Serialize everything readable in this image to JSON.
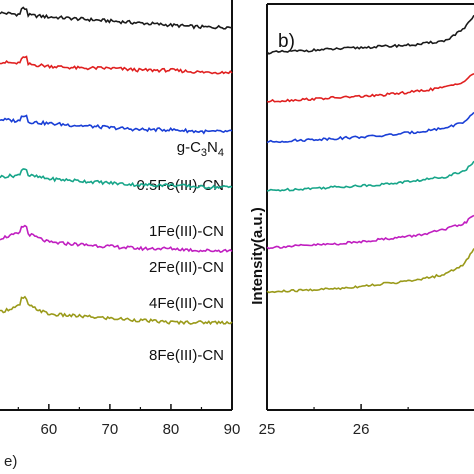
{
  "chart_data": [
    {
      "panel": "a",
      "type": "line",
      "x_ticks": [
        60,
        70,
        80,
        90
      ],
      "x_axis_fragment": "e)",
      "xlim": [
        52,
        90
      ],
      "series": [
        {
          "name": "g-C3N4",
          "color": "#1a1a1a",
          "label_parts": [
            "g-C",
            "3",
            "N",
            "4"
          ],
          "x": [
            52,
            56,
            60,
            65,
            70,
            75,
            80,
            85,
            90
          ],
          "y": [
            0.92,
            0.915,
            0.91,
            0.905,
            0.9,
            0.895,
            0.89,
            0.885,
            0.885
          ]
        },
        {
          "name": "0.5Fe(III)-CN",
          "color": "#e02020",
          "x": [
            52,
            56,
            60,
            65,
            70,
            75,
            80,
            85,
            90
          ],
          "y": [
            0.8,
            0.795,
            0.79,
            0.785,
            0.785,
            0.78,
            0.78,
            0.775,
            0.775
          ]
        },
        {
          "name": "1Fe(III)-CN",
          "color": "#1a3fd6",
          "x": [
            52,
            56,
            60,
            65,
            70,
            75,
            80,
            85,
            90
          ],
          "y": [
            0.66,
            0.655,
            0.65,
            0.645,
            0.64,
            0.635,
            0.635,
            0.63,
            0.63
          ]
        },
        {
          "name": "2Fe(III)-CN",
          "color": "#17a589",
          "x": [
            52,
            56,
            60,
            65,
            70,
            75,
            80,
            85,
            90
          ],
          "y": [
            0.52,
            0.525,
            0.515,
            0.51,
            0.505,
            0.5,
            0.5,
            0.495,
            0.495
          ]
        },
        {
          "name": "4Fe(III)-CN",
          "color": "#c01fc0",
          "x": [
            52,
            56,
            60,
            65,
            70,
            75,
            80,
            85,
            90
          ],
          "y": [
            0.37,
            0.385,
            0.36,
            0.355,
            0.35,
            0.345,
            0.345,
            0.34,
            0.34
          ]
        },
        {
          "name": "8Fe(III)-CN",
          "color": "#9a9a1a",
          "x": [
            52,
            56,
            60,
            65,
            70,
            75,
            80,
            85,
            90
          ],
          "y": [
            0.19,
            0.21,
            0.185,
            0.18,
            0.175,
            0.17,
            0.165,
            0.165,
            0.165
          ]
        }
      ]
    },
    {
      "panel": "b",
      "type": "line",
      "title": "b)",
      "ylabel": "Intensity(a.u.)",
      "x_ticks": [
        25,
        26
      ],
      "xlim": [
        25,
        27.2
      ],
      "series": [
        {
          "color": "#1a1a1a",
          "x": [
            25,
            25.4,
            25.8,
            26.2,
            26.6,
            26.9,
            27.1,
            27.2
          ],
          "y": [
            0.88,
            0.885,
            0.89,
            0.895,
            0.9,
            0.91,
            0.94,
            0.97
          ]
        },
        {
          "color": "#e02020",
          "x": [
            25,
            25.4,
            25.8,
            26.2,
            26.6,
            26.9,
            27.1,
            27.2
          ],
          "y": [
            0.76,
            0.765,
            0.77,
            0.775,
            0.785,
            0.795,
            0.81,
            0.83
          ]
        },
        {
          "color": "#1a3fd6",
          "x": [
            25,
            25.4,
            25.8,
            26.2,
            26.6,
            26.9,
            27.1,
            27.2
          ],
          "y": [
            0.66,
            0.665,
            0.67,
            0.675,
            0.685,
            0.695,
            0.71,
            0.73
          ]
        },
        {
          "color": "#17a589",
          "x": [
            25,
            25.4,
            25.8,
            26.2,
            26.6,
            26.9,
            27.1,
            27.2
          ],
          "y": [
            0.54,
            0.545,
            0.55,
            0.555,
            0.565,
            0.575,
            0.59,
            0.61
          ]
        },
        {
          "color": "#c01fc0",
          "x": [
            25,
            25.4,
            25.8,
            26.2,
            26.6,
            26.9,
            27.1,
            27.2
          ],
          "y": [
            0.4,
            0.405,
            0.41,
            0.42,
            0.43,
            0.445,
            0.46,
            0.48
          ]
        },
        {
          "color": "#9a9a1a",
          "x": [
            25,
            25.4,
            25.8,
            26.2,
            26.6,
            26.9,
            27.1,
            27.2
          ],
          "y": [
            0.29,
            0.295,
            0.3,
            0.31,
            0.32,
            0.335,
            0.36,
            0.4
          ]
        }
      ]
    }
  ]
}
